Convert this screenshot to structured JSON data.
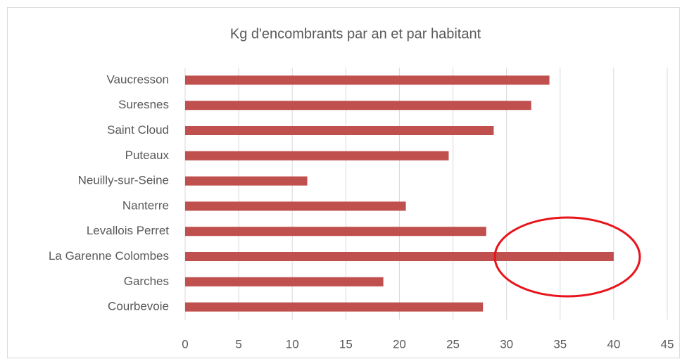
{
  "chart_data": {
    "type": "bar",
    "orientation": "horizontal",
    "title": "Kg d'encombrants par an et par habitant",
    "categories": [
      "Vaucresson",
      "Suresnes",
      "Saint Cloud",
      "Puteaux",
      "Neuilly-sur-Seine",
      "Nanterre",
      "Levallois Perret",
      "La Garenne Colombes",
      "Garches",
      "Courbevoie"
    ],
    "values": [
      34,
      32.3,
      28.8,
      24.6,
      11.4,
      20.6,
      28.1,
      40,
      18.5,
      27.8
    ],
    "color": "#c0504d",
    "xlim": [
      0,
      45
    ],
    "xticks": [
      0,
      5,
      10,
      15,
      20,
      25,
      30,
      35,
      40,
      45
    ],
    "grid": true
  }
}
